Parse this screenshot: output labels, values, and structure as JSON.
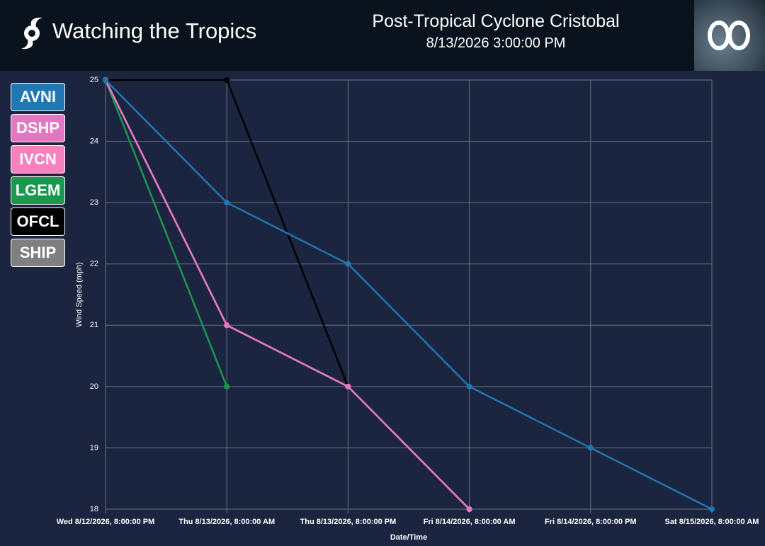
{
  "header": {
    "title": "Watching the Tropics",
    "storm": "Post-Tropical Cyclone Cristobal",
    "datetime": "8/13/2026 3:00:00 PM"
  },
  "chart_data": {
    "type": "line",
    "x": [
      "Wed 8/12/2026, 8:00:00 PM",
      "Thu 8/13/2026, 8:00:00 AM",
      "Thu 8/13/2026, 8:00:00 PM",
      "Fri 8/14/2026, 8:00:00 AM",
      "Fri 8/14/2026, 8:00:00 PM",
      "Sat 8/15/2026, 8:00:00 AM"
    ],
    "series": [
      {
        "name": "AVNI",
        "color": "#1f77b4",
        "values": [
          25,
          23,
          22,
          20,
          19,
          18
        ]
      },
      {
        "name": "DSHP",
        "color": "#e377c2",
        "values": [
          25,
          21,
          20,
          18,
          null,
          null
        ]
      },
      {
        "name": "IVCN",
        "color": "#f781bf",
        "values": [
          25,
          21,
          20,
          18,
          null,
          null
        ]
      },
      {
        "name": "LGEM",
        "color": "#1a9850",
        "values": [
          25,
          20,
          null,
          null,
          null,
          null
        ]
      },
      {
        "name": "OFCL",
        "color": "#000000",
        "values": [
          25,
          25,
          20,
          null,
          null,
          null
        ]
      },
      {
        "name": "SHIP",
        "color": "#7f7f7f",
        "values": [
          25,
          21,
          20,
          18,
          null,
          null
        ]
      }
    ],
    "ylim": [
      18,
      25
    ],
    "yticks": [
      18,
      19,
      20,
      21,
      22,
      23,
      24,
      25
    ],
    "grid": true,
    "ylabel": "Wind Speed (mph)",
    "xlabel": "Date/Time"
  }
}
